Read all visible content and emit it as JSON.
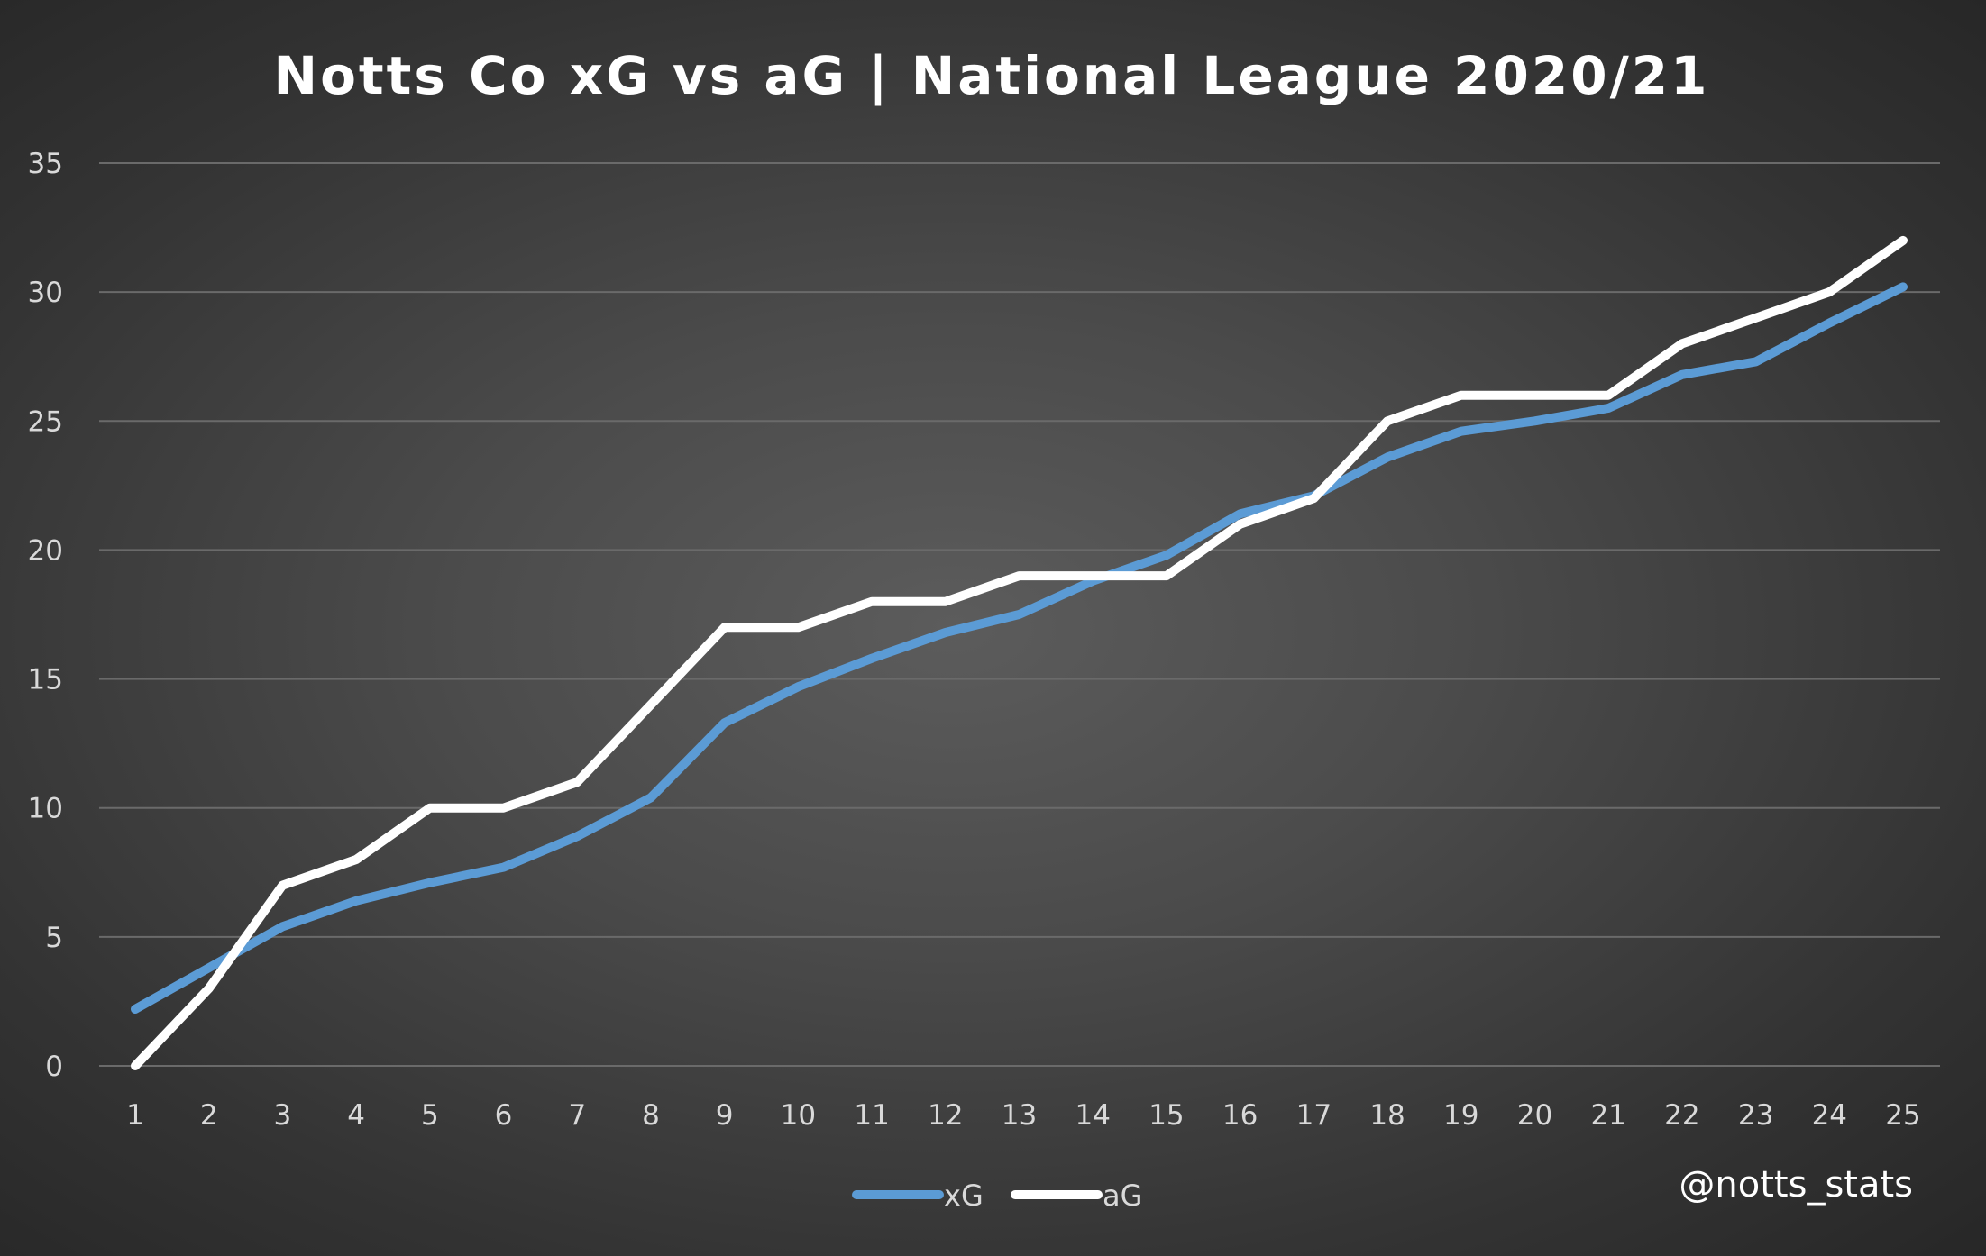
{
  "chart_data": {
    "type": "line",
    "title": "Notts Co xG vs aG | National League 2020/21",
    "xlabel": "",
    "ylabel": "",
    "x": [
      1,
      2,
      3,
      4,
      5,
      6,
      7,
      8,
      9,
      10,
      11,
      12,
      13,
      14,
      15,
      16,
      17,
      18,
      19,
      20,
      21,
      22,
      23,
      24,
      25
    ],
    "ylim": [
      0,
      35
    ],
    "yticks": [
      0,
      5,
      10,
      15,
      20,
      25,
      30,
      35
    ],
    "grid": true,
    "legend_position": "bottom",
    "series": [
      {
        "name": "xG",
        "color": "#5b9bd5",
        "values": [
          2.2,
          3.8,
          5.4,
          6.4,
          7.1,
          7.7,
          8.9,
          10.4,
          13.3,
          14.7,
          15.8,
          16.8,
          17.5,
          18.8,
          19.8,
          21.4,
          22.1,
          23.6,
          24.6,
          25.0,
          25.5,
          26.8,
          27.3,
          28.8,
          30.2
        ]
      },
      {
        "name": "aG",
        "color": "#ffffff",
        "values": [
          0,
          3,
          7,
          8,
          10,
          10,
          11,
          14,
          17,
          17,
          18,
          18,
          19,
          19,
          19,
          21,
          22,
          25,
          26,
          26,
          26,
          28,
          29,
          30,
          32
        ]
      }
    ]
  },
  "watermark": "@notts_stats",
  "colors": {
    "background": "#3a3a3a",
    "gridline": "#6a6a6a",
    "text": "#d9d9d9"
  }
}
